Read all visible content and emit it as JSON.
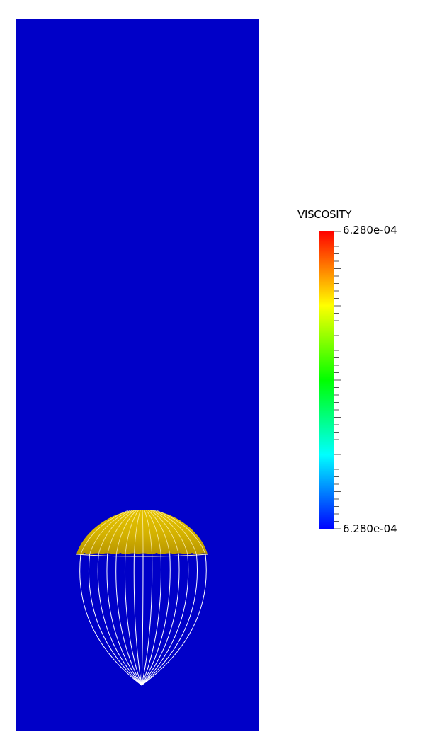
{
  "legend": {
    "title": "VISCOSITY",
    "max_label": "6.280e-04",
    "min_label": "6.280e-04",
    "colormap": [
      "#0000ff",
      "#00ffff",
      "#00ff00",
      "#ffff00",
      "#ff0000"
    ],
    "minor_tick_count": 41
  },
  "scene": {
    "background_color": "#0000c8",
    "canopy_color": "#d4b200",
    "suspension_line_color": "#ffffff",
    "suspension_line_count": 15
  }
}
